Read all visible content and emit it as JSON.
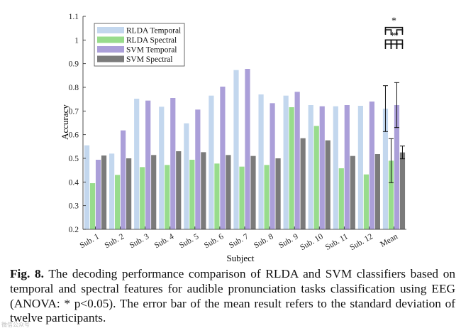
{
  "chart_data": {
    "type": "bar",
    "xlabel": "Subject",
    "ylabel": "Accuracy",
    "ylim": [
      0.2,
      1.1
    ],
    "yticks": [
      "0.2",
      "0.3",
      "0.4",
      "0.5",
      "0.6",
      "0.7",
      "0.8",
      "0.9",
      "1",
      "1.1"
    ],
    "categories": [
      "Sub. 1",
      "Sub. 2",
      "Sub. 3",
      "Sub. 4",
      "Sub. 5",
      "Sub. 6",
      "Sub. 7",
      "Sub. 8",
      "Sub. 9",
      "Sub. 10",
      "Sub. 11",
      "Sub. 12",
      "Mean"
    ],
    "series": [
      {
        "name": "RLDA Temporal",
        "color": "#c3d7ee",
        "values": [
          0.555,
          0.52,
          0.752,
          0.718,
          0.648,
          0.765,
          0.873,
          0.77,
          0.765,
          0.725,
          0.72,
          0.722,
          0.71
        ],
        "mean_error": 0.097
      },
      {
        "name": "RLDA Spectral",
        "color": "#98dc8c",
        "values": [
          0.395,
          0.43,
          0.463,
          0.472,
          0.494,
          0.478,
          0.465,
          0.472,
          0.716,
          0.637,
          0.458,
          0.432,
          0.49
        ],
        "mean_error": 0.093
      },
      {
        "name": "SVM Temporal",
        "color": "#ab9fd9",
        "values": [
          0.494,
          0.618,
          0.744,
          0.755,
          0.706,
          0.803,
          0.878,
          0.733,
          0.781,
          0.72,
          0.725,
          0.74,
          0.725
        ],
        "mean_error": 0.095
      },
      {
        "name": "SVM Spectral",
        "color": "#7b7b7b",
        "values": [
          0.512,
          0.5,
          0.514,
          0.53,
          0.526,
          0.514,
          0.51,
          0.5,
          0.585,
          0.576,
          0.51,
          0.518,
          0.525
        ],
        "mean_error": 0.027
      }
    ],
    "legend_position": "top-left",
    "significance_marker": "*"
  },
  "caption": {
    "label": "Fig. 8.",
    "text": " The decoding performance comparison of RLDA and SVM classifiers based on temporal and spectral features for audible pronunciation tasks classification using EEG (ANOVA: * p<0.05). The error bar of the mean result refers to the standard deviation of twelve participants."
  },
  "watermark": "微信公众号"
}
